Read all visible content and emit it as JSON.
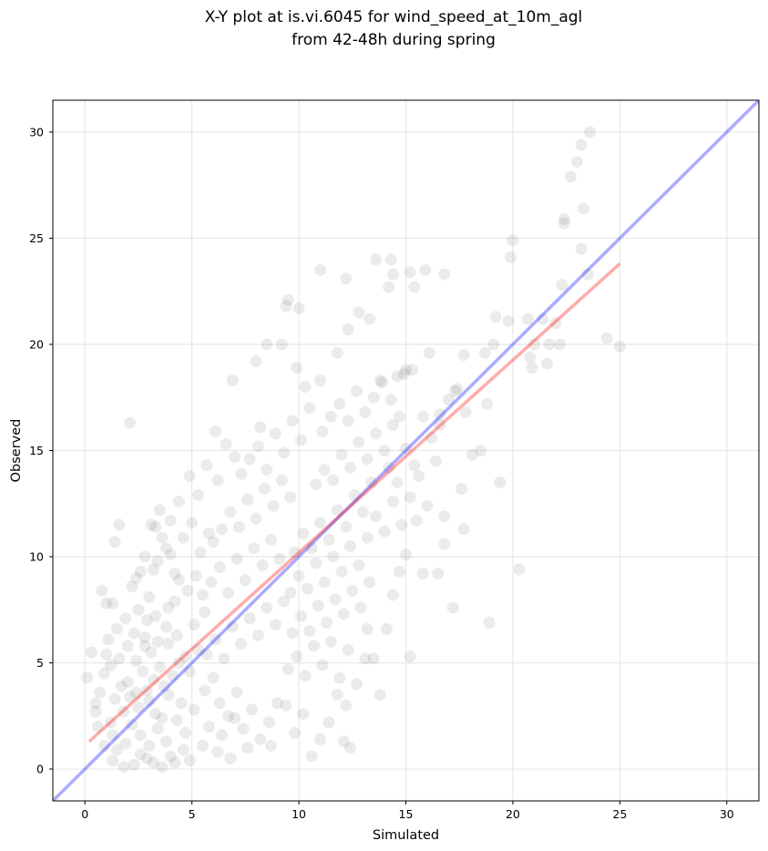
{
  "chart_data": {
    "type": "scatter",
    "title_line1": "X-Y plot at is.vi.6045 for wind_speed_at_10m_agl",
    "title_line2": "from 42-48h during spring",
    "xlabel": "Simulated",
    "ylabel": "Observed",
    "xlim": [
      -1.5,
      31.5
    ],
    "ylim": [
      -1.5,
      31.5
    ],
    "xticks": [
      0,
      5,
      10,
      15,
      20,
      25,
      30
    ],
    "yticks": [
      0,
      5,
      10,
      15,
      20,
      25,
      30
    ],
    "grid": true,
    "point_color": "#000000",
    "point_alpha": 0.08,
    "identity_line": {
      "x": [
        -1.5,
        31.5
      ],
      "y": [
        -1.5,
        31.5
      ],
      "color": "#0000ff",
      "alpha": 0.33
    },
    "fit_line": {
      "x": [
        0.2,
        25.0
      ],
      "y": [
        1.3,
        23.8
      ],
      "color": "#ff0000",
      "alpha": 0.33
    },
    "points": [
      [
        2.1,
        16.3
      ],
      [
        1.6,
        11.5
      ],
      [
        1.4,
        10.7
      ],
      [
        3.1,
        11.5
      ],
      [
        3.3,
        11.4
      ],
      [
        0.8,
        8.4
      ],
      [
        1.0,
        7.8
      ],
      [
        1.3,
        7.8
      ],
      [
        0.3,
        5.5
      ],
      [
        0.1,
        4.3
      ],
      [
        0.5,
        3.1
      ],
      [
        0.6,
        2.0
      ],
      [
        0.9,
        1.1
      ],
      [
        1.3,
        0.4
      ],
      [
        1.8,
        0.1
      ],
      [
        2.3,
        0.2
      ],
      [
        2.9,
        0.5
      ],
      [
        3.6,
        0.1
      ],
      [
        4.2,
        0.3
      ],
      [
        4.6,
        0.9
      ],
      [
        1.1,
        6.1
      ],
      [
        1.5,
        6.6
      ],
      [
        1.9,
        7.1
      ],
      [
        2.3,
        6.4
      ],
      [
        2.8,
        5.8
      ],
      [
        3.3,
        7.2
      ],
      [
        3.8,
        6.7
      ],
      [
        4.2,
        7.9
      ],
      [
        4.8,
        8.4
      ],
      [
        5.2,
        9.1
      ],
      [
        1.2,
        4.9
      ],
      [
        1.6,
        5.2
      ],
      [
        2.0,
        4.1
      ],
      [
        2.4,
        3.6
      ],
      [
        2.7,
        4.6
      ],
      [
        3.0,
        3.2
      ],
      [
        3.3,
        2.6
      ],
      [
        3.7,
        3.9
      ],
      [
        4.1,
        4.4
      ],
      [
        4.5,
        3.1
      ],
      [
        1.4,
        3.3
      ],
      [
        1.8,
        2.7
      ],
      [
        2.2,
        2.1
      ],
      [
        2.6,
        1.6
      ],
      [
        3.0,
        1.1
      ],
      [
        3.4,
        1.9
      ],
      [
        3.8,
        1.3
      ],
      [
        4.3,
        2.3
      ],
      [
        4.7,
        1.7
      ],
      [
        5.1,
        2.8
      ],
      [
        1.7,
        3.9
      ],
      [
        2.1,
        3.4
      ],
      [
        2.5,
        2.9
      ],
      [
        2.9,
        3.7
      ],
      [
        3.2,
        4.2
      ],
      [
        3.6,
        2.4
      ],
      [
        3.9,
        3.5
      ],
      [
        4.4,
        5.0
      ],
      [
        4.9,
        4.6
      ],
      [
        5.3,
        5.6
      ],
      [
        2.0,
        5.8
      ],
      [
        2.4,
        5.1
      ],
      [
        2.8,
        6.2
      ],
      [
        3.1,
        5.5
      ],
      [
        3.5,
        4.8
      ],
      [
        3.9,
        5.9
      ],
      [
        4.3,
        6.3
      ],
      [
        4.7,
        5.3
      ],
      [
        5.1,
        6.8
      ],
      [
        5.6,
        7.4
      ],
      [
        2.2,
        8.6
      ],
      [
        2.6,
        9.3
      ],
      [
        3.0,
        8.1
      ],
      [
        3.4,
        9.8
      ],
      [
        3.8,
        10.4
      ],
      [
        4.2,
        9.2
      ],
      [
        4.6,
        10.9
      ],
      [
        5.0,
        11.6
      ],
      [
        5.4,
        10.2
      ],
      [
        5.8,
        11.1
      ],
      [
        3.5,
        12.2
      ],
      [
        4.0,
        11.7
      ],
      [
        4.4,
        12.6
      ],
      [
        4.9,
        13.8
      ],
      [
        5.3,
        12.9
      ],
      [
        5.7,
        14.3
      ],
      [
        6.2,
        13.6
      ],
      [
        6.6,
        15.3
      ],
      [
        7.0,
        14.7
      ],
      [
        6.1,
        15.9
      ],
      [
        5.6,
        3.7
      ],
      [
        6.0,
        4.3
      ],
      [
        6.3,
        3.1
      ],
      [
        6.7,
        2.5
      ],
      [
        7.1,
        3.6
      ],
      [
        7.4,
        1.9
      ],
      [
        7.8,
        2.8
      ],
      [
        8.2,
        1.4
      ],
      [
        8.6,
        2.2
      ],
      [
        9.0,
        3.1
      ],
      [
        5.7,
        5.4
      ],
      [
        6.1,
        6.1
      ],
      [
        6.5,
        5.2
      ],
      [
        6.9,
        6.7
      ],
      [
        7.3,
        5.9
      ],
      [
        7.7,
        7.1
      ],
      [
        8.1,
        6.3
      ],
      [
        8.5,
        7.6
      ],
      [
        8.9,
        6.8
      ],
      [
        9.3,
        7.9
      ],
      [
        5.5,
        8.2
      ],
      [
        5.9,
        8.8
      ],
      [
        6.3,
        9.5
      ],
      [
        6.7,
        8.3
      ],
      [
        7.1,
        9.9
      ],
      [
        7.5,
        8.9
      ],
      [
        7.9,
        10.4
      ],
      [
        8.3,
        9.6
      ],
      [
        8.7,
        10.8
      ],
      [
        9.1,
        9.9
      ],
      [
        6.0,
        10.7
      ],
      [
        6.4,
        11.3
      ],
      [
        6.8,
        12.1
      ],
      [
        7.2,
        11.4
      ],
      [
        7.6,
        12.7
      ],
      [
        8.0,
        11.8
      ],
      [
        8.4,
        13.2
      ],
      [
        8.8,
        12.4
      ],
      [
        9.2,
        13.6
      ],
      [
        9.6,
        12.8
      ],
      [
        7.3,
        13.9
      ],
      [
        7.7,
        14.6
      ],
      [
        8.1,
        15.2
      ],
      [
        8.5,
        14.1
      ],
      [
        8.9,
        15.8
      ],
      [
        9.3,
        14.9
      ],
      [
        9.7,
        16.4
      ],
      [
        10.1,
        15.5
      ],
      [
        10.5,
        17.0
      ],
      [
        8.2,
        16.1
      ],
      [
        6.9,
        18.3
      ],
      [
        8.5,
        20.0
      ],
      [
        9.2,
        20.0
      ],
      [
        9.4,
        21.8
      ],
      [
        9.5,
        22.1
      ],
      [
        10.0,
        21.7
      ],
      [
        8.0,
        19.2
      ],
      [
        9.9,
        18.9
      ],
      [
        10.3,
        18.0
      ],
      [
        11.0,
        18.3
      ],
      [
        9.8,
        10.2
      ],
      [
        10.2,
        11.1
      ],
      [
        10.6,
        10.4
      ],
      [
        11.0,
        11.6
      ],
      [
        11.4,
        10.8
      ],
      [
        11.8,
        12.2
      ],
      [
        12.2,
        11.4
      ],
      [
        12.6,
        12.9
      ],
      [
        13.0,
        12.1
      ],
      [
        13.4,
        13.5
      ],
      [
        9.6,
        8.3
      ],
      [
        10.0,
        9.1
      ],
      [
        10.4,
        8.5
      ],
      [
        10.8,
        9.7
      ],
      [
        11.2,
        8.8
      ],
      [
        11.6,
        10.0
      ],
      [
        12.0,
        9.3
      ],
      [
        12.4,
        10.5
      ],
      [
        12.8,
        9.6
      ],
      [
        13.2,
        10.9
      ],
      [
        9.7,
        6.4
      ],
      [
        10.1,
        7.2
      ],
      [
        10.5,
        6.5
      ],
      [
        10.9,
        7.7
      ],
      [
        11.3,
        6.9
      ],
      [
        11.7,
        8.0
      ],
      [
        12.1,
        7.3
      ],
      [
        12.5,
        8.4
      ],
      [
        12.9,
        7.6
      ],
      [
        13.3,
        8.8
      ],
      [
        9.5,
        4.7
      ],
      [
        9.9,
        5.3
      ],
      [
        10.3,
        4.4
      ],
      [
        10.7,
        5.8
      ],
      [
        11.1,
        4.9
      ],
      [
        11.5,
        6.0
      ],
      [
        11.9,
        4.3
      ],
      [
        12.3,
        5.6
      ],
      [
        12.7,
        4.0
      ],
      [
        13.1,
        5.2
      ],
      [
        9.4,
        3.0
      ],
      [
        9.8,
        1.7
      ],
      [
        10.2,
        2.6
      ],
      [
        10.6,
        0.6
      ],
      [
        11.0,
        1.4
      ],
      [
        11.4,
        2.2
      ],
      [
        11.8,
        3.5
      ],
      [
        12.1,
        1.3
      ],
      [
        12.2,
        3.0
      ],
      [
        12.4,
        1.0
      ],
      [
        10.8,
        13.4
      ],
      [
        11.2,
        14.1
      ],
      [
        11.6,
        13.6
      ],
      [
        12.0,
        14.8
      ],
      [
        12.4,
        14.2
      ],
      [
        12.8,
        15.4
      ],
      [
        13.2,
        14.6
      ],
      [
        13.6,
        15.8
      ],
      [
        14.0,
        15.0
      ],
      [
        14.4,
        16.2
      ],
      [
        11.1,
        15.9
      ],
      [
        11.5,
        16.6
      ],
      [
        11.9,
        17.2
      ],
      [
        12.3,
        16.4
      ],
      [
        12.7,
        17.8
      ],
      [
        13.1,
        16.8
      ],
      [
        13.5,
        17.5
      ],
      [
        13.9,
        18.2
      ],
      [
        14.3,
        17.4
      ],
      [
        14.7,
        16.6
      ],
      [
        11.0,
        23.5
      ],
      [
        11.8,
        19.6
      ],
      [
        12.3,
        20.7
      ],
      [
        12.2,
        23.1
      ],
      [
        12.8,
        21.5
      ],
      [
        13.3,
        21.2
      ],
      [
        13.6,
        24.0
      ],
      [
        14.2,
        22.7
      ],
      [
        14.4,
        23.3
      ],
      [
        14.3,
        24.0
      ],
      [
        15.2,
        23.4
      ],
      [
        15.4,
        22.7
      ],
      [
        15.9,
        23.5
      ],
      [
        16.8,
        23.3
      ],
      [
        16.1,
        19.6
      ],
      [
        15.0,
        18.8
      ],
      [
        14.6,
        18.5
      ],
      [
        13.8,
        18.3
      ],
      [
        15.3,
        18.8
      ],
      [
        14.9,
        18.6
      ],
      [
        13.2,
        6.6
      ],
      [
        13.5,
        5.2
      ],
      [
        13.8,
        3.5
      ],
      [
        14.1,
        6.6
      ],
      [
        14.4,
        8.2
      ],
      [
        14.7,
        9.3
      ],
      [
        15.0,
        10.1
      ],
      [
        15.2,
        5.3
      ],
      [
        15.5,
        11.7
      ],
      [
        15.8,
        9.2
      ],
      [
        13.6,
        11.9
      ],
      [
        14.0,
        11.2
      ],
      [
        14.4,
        12.6
      ],
      [
        14.8,
        11.5
      ],
      [
        15.2,
        12.8
      ],
      [
        15.6,
        13.8
      ],
      [
        16.0,
        12.4
      ],
      [
        16.4,
        14.5
      ],
      [
        16.8,
        11.9
      ],
      [
        16.5,
        9.2
      ],
      [
        14.2,
        14.2
      ],
      [
        14.6,
        13.5
      ],
      [
        15.0,
        15.1
      ],
      [
        15.4,
        14.3
      ],
      [
        15.8,
        16.6
      ],
      [
        16.2,
        15.6
      ],
      [
        16.6,
        16.7
      ],
      [
        17.0,
        17.4
      ],
      [
        17.4,
        17.9
      ],
      [
        17.8,
        16.8
      ],
      [
        17.2,
        7.6
      ],
      [
        16.8,
        10.6
      ],
      [
        17.7,
        11.3
      ],
      [
        17.6,
        13.2
      ],
      [
        18.1,
        14.8
      ],
      [
        18.5,
        15.0
      ],
      [
        18.9,
        6.9
      ],
      [
        19.4,
        13.5
      ],
      [
        20.3,
        9.4
      ],
      [
        18.8,
        17.2
      ],
      [
        17.7,
        19.5
      ],
      [
        18.7,
        19.6
      ],
      [
        19.1,
        20.0
      ],
      [
        19.2,
        21.3
      ],
      [
        19.8,
        21.1
      ],
      [
        19.9,
        24.1
      ],
      [
        20.0,
        24.9
      ],
      [
        20.7,
        21.2
      ],
      [
        20.8,
        19.4
      ],
      [
        20.9,
        18.9
      ],
      [
        21.6,
        19.1
      ],
      [
        21.7,
        20.0
      ],
      [
        22.2,
        20.0
      ],
      [
        22.0,
        21.0
      ],
      [
        22.3,
        22.8
      ],
      [
        22.4,
        25.7
      ],
      [
        22.4,
        25.9
      ],
      [
        22.7,
        27.9
      ],
      [
        23.0,
        28.6
      ],
      [
        23.2,
        29.4
      ],
      [
        23.3,
        26.4
      ],
      [
        23.2,
        24.5
      ],
      [
        23.5,
        23.3
      ],
      [
        23.6,
        30.0
      ],
      [
        24.4,
        20.3
      ],
      [
        25.0,
        19.9
      ],
      [
        21.0,
        20.0
      ],
      [
        21.4,
        21.2
      ],
      [
        17.3,
        17.8
      ],
      [
        16.6,
        16.2
      ],
      [
        0.5,
        2.7
      ],
      [
        0.7,
        3.6
      ],
      [
        0.9,
        4.5
      ],
      [
        1.0,
        5.4
      ],
      [
        1.2,
        2.2
      ],
      [
        1.3,
        1.6
      ],
      [
        1.5,
        0.9
      ],
      [
        1.9,
        1.2
      ],
      [
        2.6,
        0.7
      ],
      [
        3.2,
        0.3
      ],
      [
        4.0,
        0.6
      ],
      [
        4.9,
        0.4
      ],
      [
        5.5,
        1.1
      ],
      [
        6.2,
        0.8
      ],
      [
        6.8,
        0.5
      ],
      [
        7.6,
        1.0
      ],
      [
        5.8,
        2.0
      ],
      [
        6.4,
        1.6
      ],
      [
        7.0,
        2.4
      ],
      [
        8.7,
        1.1
      ],
      [
        2.5,
        7.5
      ],
      [
        2.9,
        7.0
      ],
      [
        3.4,
        6.0
      ],
      [
        3.9,
        7.6
      ],
      [
        4.4,
        8.9
      ],
      [
        4.0,
        10.1
      ],
      [
        3.6,
        10.9
      ],
      [
        3.2,
        9.4
      ],
      [
        2.8,
        10.0
      ],
      [
        2.4,
        9.0
      ]
    ]
  }
}
